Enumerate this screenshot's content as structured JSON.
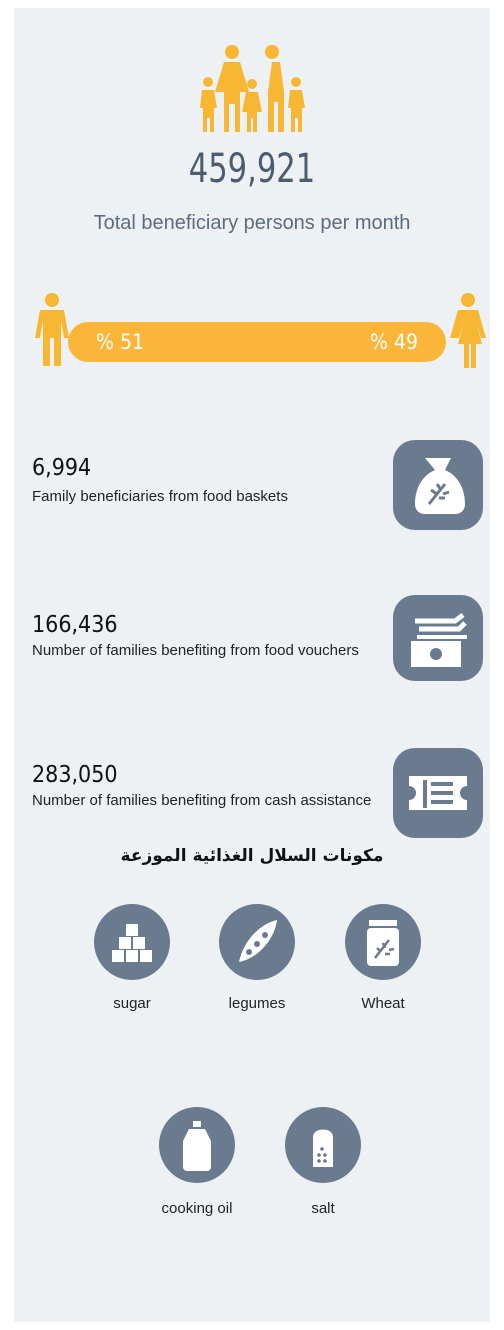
{
  "header": {
    "count": "459,921",
    "subtitle": "Total beneficiary persons per month"
  },
  "gender": {
    "male": "% 51",
    "female": "% 49"
  },
  "stats": [
    {
      "value": "6,994",
      "label": "Family beneficiaries from food baskets"
    },
    {
      "value": "166,436",
      "label": "Number of families benefiting from food vouchers"
    },
    {
      "value": "283,050",
      "label": "Number of families benefiting from cash assistance"
    }
  ],
  "basket": {
    "heading": "مكونات السلال الغذائية الموزعة",
    "items": [
      "sugar",
      "legumes",
      "Wheat",
      "cooking oil",
      "salt"
    ]
  }
}
